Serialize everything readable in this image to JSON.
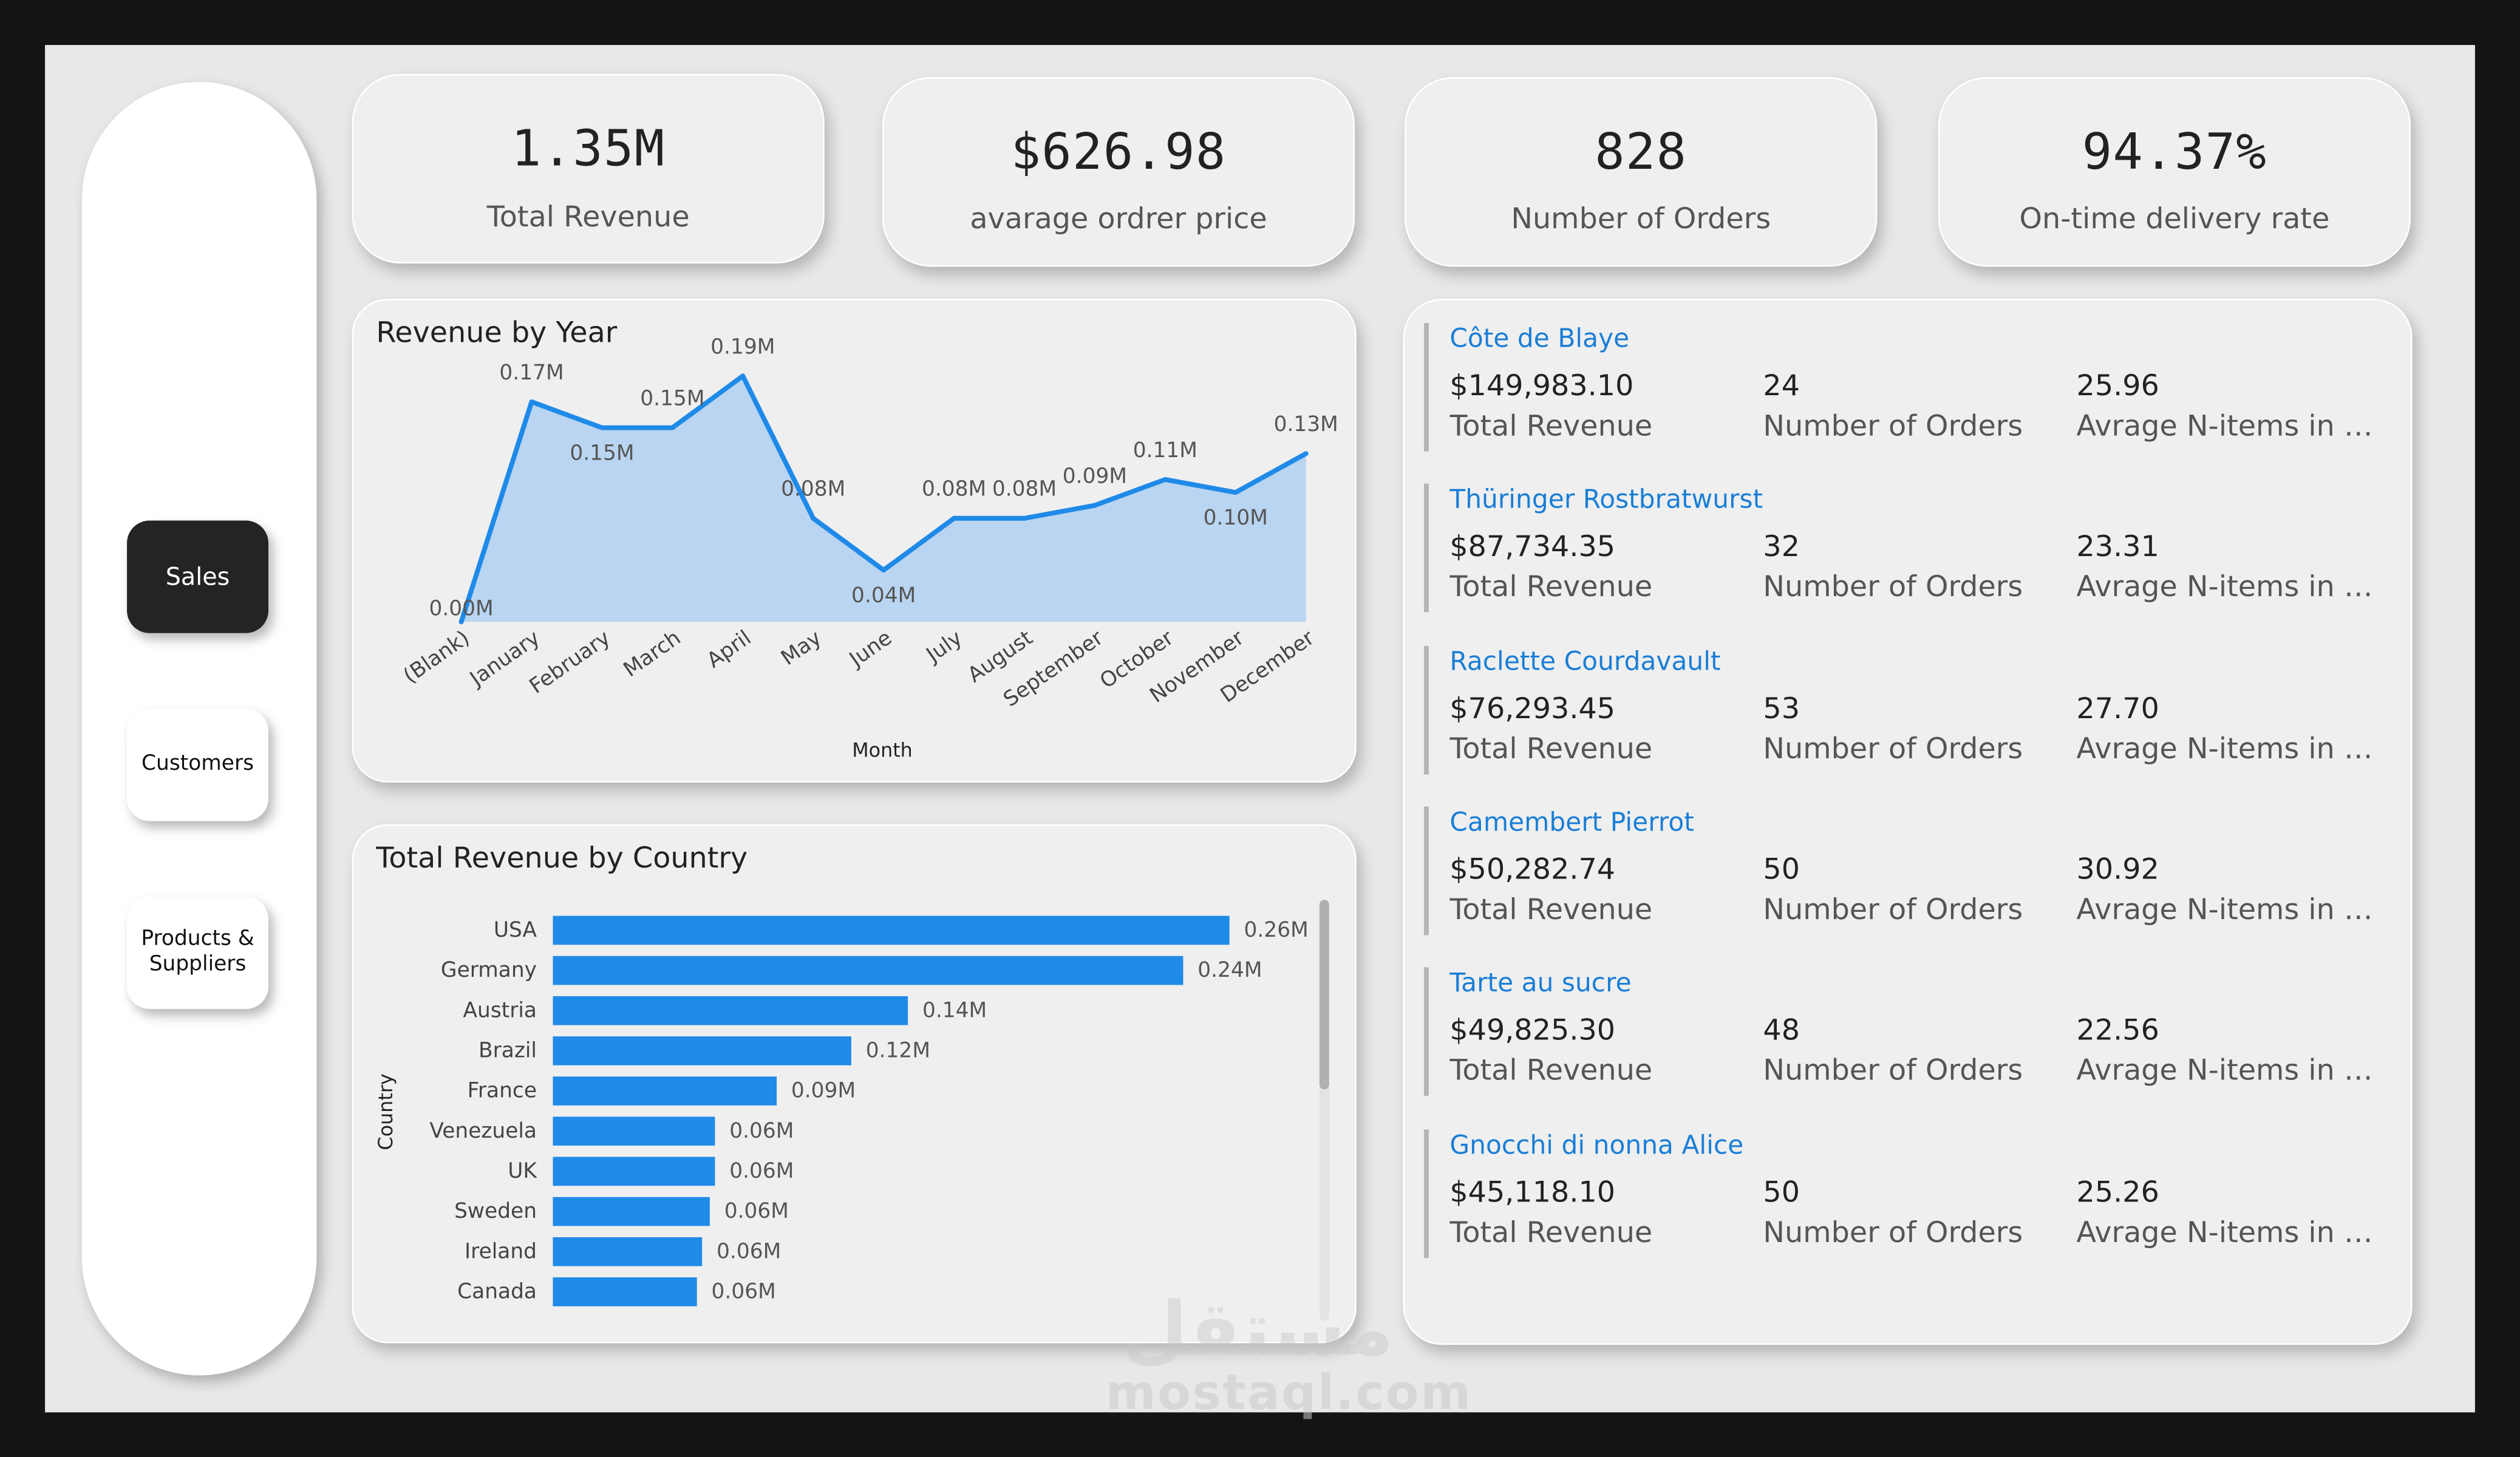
{
  "nav": {
    "sales": "Sales",
    "customers": "Customers",
    "products_line1": "Products &",
    "products_line2": "Suppliers"
  },
  "kpis": [
    {
      "value": "1.35M",
      "label": "Total Revenue"
    },
    {
      "value": "$626.98",
      "label": "avarage ordrer price"
    },
    {
      "value": "828",
      "label": "Number of Orders"
    },
    {
      "value": "94.37%",
      "label": "On-time delivery rate"
    }
  ],
  "revenue_chart": {
    "title": "Revenue by Year"
  },
  "country_chart": {
    "title": "Total Revenue by Country"
  },
  "chart_data": [
    {
      "type": "area",
      "title": "Revenue by Year",
      "xlabel": "Month",
      "ylabel": "",
      "categories": [
        "(Blank)",
        "January",
        "February",
        "March",
        "April",
        "May",
        "June",
        "July",
        "August",
        "September",
        "October",
        "November",
        "December"
      ],
      "values": [
        0.0,
        0.17,
        0.15,
        0.15,
        0.19,
        0.08,
        0.04,
        0.08,
        0.08,
        0.09,
        0.11,
        0.1,
        0.13
      ],
      "data_labels": [
        "0.00M",
        "0.17M",
        "0.15M",
        "0.15M",
        "0.19M",
        "0.08M",
        "0.04M",
        "0.08M",
        "0.08M",
        "0.09M",
        "0.11M",
        "0.10M",
        "0.13M"
      ],
      "unit": "M",
      "color": "#1f8ae8",
      "fill": "#b9d5f1"
    },
    {
      "type": "bar",
      "orientation": "horizontal",
      "title": "Total Revenue by Country",
      "xlabel": "",
      "ylabel": "Country",
      "categories": [
        "USA",
        "Germany",
        "Austria",
        "Brazil",
        "France",
        "Venezuela",
        "UK",
        "Sweden",
        "Ireland",
        "Canada"
      ],
      "values": [
        0.26,
        0.24,
        0.14,
        0.12,
        0.09,
        0.06,
        0.06,
        0.06,
        0.06,
        0.06
      ],
      "bar_lengths": [
        0.263,
        0.245,
        0.138,
        0.116,
        0.087,
        0.063,
        0.063,
        0.061,
        0.058,
        0.056
      ],
      "data_labels": [
        "0.26M",
        "0.24M",
        "0.14M",
        "0.12M",
        "0.09M",
        "0.06M",
        "0.06M",
        "0.06M",
        "0.06M",
        "0.06M"
      ],
      "xlim": [
        0,
        0.263
      ],
      "color": "#1f8ae8"
    }
  ],
  "products": [
    {
      "name": "Côte de Blaye",
      "revenue": "$149,983.10",
      "orders": "24",
      "avg_items": "25.96"
    },
    {
      "name": "Thüringer Rostbratwurst",
      "revenue": "$87,734.35",
      "orders": "32",
      "avg_items": "23.31"
    },
    {
      "name": "Raclette Courdavault",
      "revenue": "$76,293.45",
      "orders": "53",
      "avg_items": "27.70"
    },
    {
      "name": "Camembert Pierrot",
      "revenue": "$50,282.74",
      "orders": "50",
      "avg_items": "30.92"
    },
    {
      "name": "Tarte au sucre",
      "revenue": "$49,825.30",
      "orders": "48",
      "avg_items": "22.56"
    },
    {
      "name": "Gnocchi di nonna Alice",
      "revenue": "$45,118.10",
      "orders": "50",
      "avg_items": "25.26"
    }
  ],
  "product_labels": {
    "revenue": "Total Revenue",
    "orders": "Number of Orders",
    "avg_items": "Avrage N-items in Or..."
  },
  "watermark": {
    "arabic": "مستقل",
    "latin": "mostaql.com"
  }
}
